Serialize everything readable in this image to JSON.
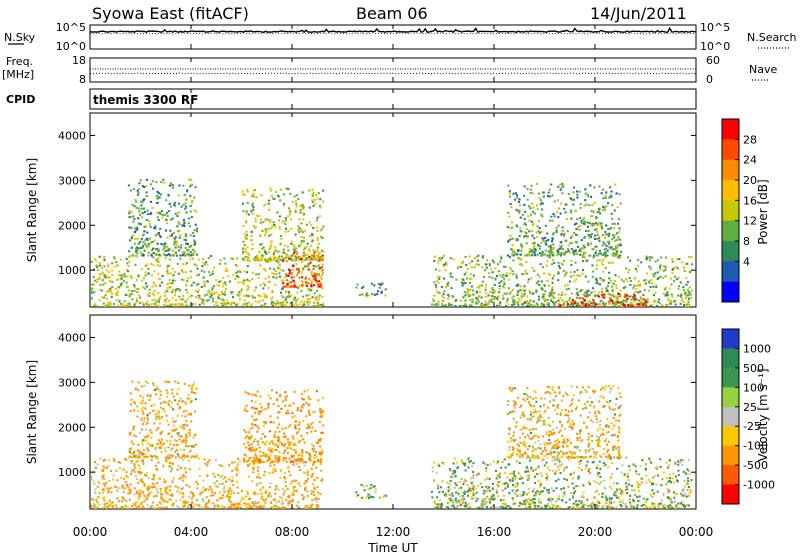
{
  "header": {
    "station": "Syowa East (fitACF)",
    "beam": "Beam 06",
    "date": "14/Jun/2011"
  },
  "noise_panel": {
    "left_label": "N.Sky",
    "right_label": "N.Search",
    "left_ticks": [
      "10^5",
      "10^0"
    ],
    "right_ticks": [
      "10^5",
      "10^0"
    ]
  },
  "freq_panel": {
    "left_label_line1": "Freq.",
    "left_label_line2": "[MHz]",
    "right_label": "Nave",
    "left_ticks": [
      "18",
      "8"
    ],
    "right_ticks": [
      "60",
      "0"
    ]
  },
  "cpid_panel": {
    "label": "CPID",
    "program": "themis 3300 RF"
  },
  "x_axis": {
    "label": "Time UT",
    "ticks": [
      "00:00",
      "04:00",
      "08:00",
      "12:00",
      "16:00",
      "20:00",
      "00:00"
    ]
  },
  "power_colorbar": {
    "title": "Power [dB]",
    "ticks": [
      "28",
      "24",
      "20",
      "16",
      "12",
      "8",
      "4"
    ],
    "colors": [
      "#ff0000",
      "#ff4a00",
      "#ff8c00",
      "#ffbe00",
      "#c8c800",
      "#60b040",
      "#2e8b57",
      "#1e5ab4",
      "#0000ff"
    ]
  },
  "velocity_colorbar": {
    "title": "Velocity [m s⁻¹]",
    "ticks": [
      "1000",
      "500",
      "100",
      "25",
      "-25",
      "-100",
      "-500",
      "-1000"
    ],
    "colors": [
      "#1e3cc8",
      "#2e8b57",
      "#3c9650",
      "#96d23c",
      "#c0c0c0",
      "#ffc800",
      "#ff9600",
      "#ff5a00",
      "#ff0000"
    ]
  },
  "chart_data": [
    {
      "type": "line",
      "title": "N.Sky / N.Search",
      "x_range_hours": [
        0,
        24
      ],
      "y_scale": "log",
      "ylim": [
        "10^0",
        "10^5"
      ],
      "approx_level": "near 10^5 throughout the day"
    },
    {
      "type": "scatter",
      "title": "Freq. / Nave",
      "x_range_hours": [
        0,
        24
      ],
      "ylim_freq_mhz": [
        8,
        18
      ],
      "ylim_nave": [
        0,
        60
      ],
      "approx_freq_mhz": 13,
      "approx_nave": 20
    },
    {
      "type": "heatmap",
      "title": "Power [dB]",
      "xlabel": "Time UT",
      "ylabel": "Slant Range [km]",
      "x_range_hours": [
        0,
        24
      ],
      "ylim_km": [
        180,
        4500
      ],
      "y_ticks_km": [
        1000,
        2000,
        3000,
        4000
      ],
      "color_range_db": [
        0,
        30
      ],
      "echo_regions": [
        {
          "t": [
            0.0,
            9.2
          ],
          "range_km": [
            180,
            1300
          ],
          "level": 14
        },
        {
          "t": [
            1.5,
            4.2
          ],
          "range_km": [
            1300,
            3000
          ],
          "level": 10
        },
        {
          "t": [
            6.0,
            9.2
          ],
          "range_km": [
            1200,
            2800
          ],
          "level": 14
        },
        {
          "t": [
            7.6,
            9.2
          ],
          "range_km": [
            600,
            1400
          ],
          "level": 26
        },
        {
          "t": [
            10.5,
            11.7
          ],
          "range_km": [
            400,
            700
          ],
          "level": 10
        },
        {
          "t": [
            13.5,
            23.8
          ],
          "range_km": [
            180,
            1300
          ],
          "level": 12
        },
        {
          "t": [
            16.5,
            21.0
          ],
          "range_km": [
            1300,
            2900
          ],
          "level": 10
        },
        {
          "t": [
            18.5,
            22.0
          ],
          "range_km": [
            180,
            450
          ],
          "level": 28
        }
      ]
    },
    {
      "type": "heatmap",
      "title": "Velocity [m s-1]",
      "xlabel": "Time UT",
      "ylabel": "Slant Range [km]",
      "x_range_hours": [
        0,
        24
      ],
      "ylim_km": [
        180,
        4500
      ],
      "y_ticks_km": [
        1000,
        2000,
        3000,
        4000
      ],
      "color_range_ms": [
        -1000,
        1000
      ],
      "echo_regions": [
        {
          "t": [
            0.0,
            9.2
          ],
          "range_km": [
            180,
            1300
          ],
          "velocity_ms": -150
        },
        {
          "t": [
            1.5,
            4.2
          ],
          "range_km": [
            1300,
            3000
          ],
          "velocity_ms": -120
        },
        {
          "t": [
            6.0,
            9.2
          ],
          "range_km": [
            1200,
            2800
          ],
          "velocity_ms": -250
        },
        {
          "t": [
            10.5,
            11.7
          ],
          "range_km": [
            400,
            700
          ],
          "velocity_ms": 80
        },
        {
          "t": [
            13.5,
            23.8
          ],
          "range_km": [
            180,
            1300
          ],
          "velocity_ms": 60
        },
        {
          "t": [
            16.5,
            21.0
          ],
          "range_km": [
            1300,
            2900
          ],
          "velocity_ms": -120
        }
      ]
    }
  ]
}
